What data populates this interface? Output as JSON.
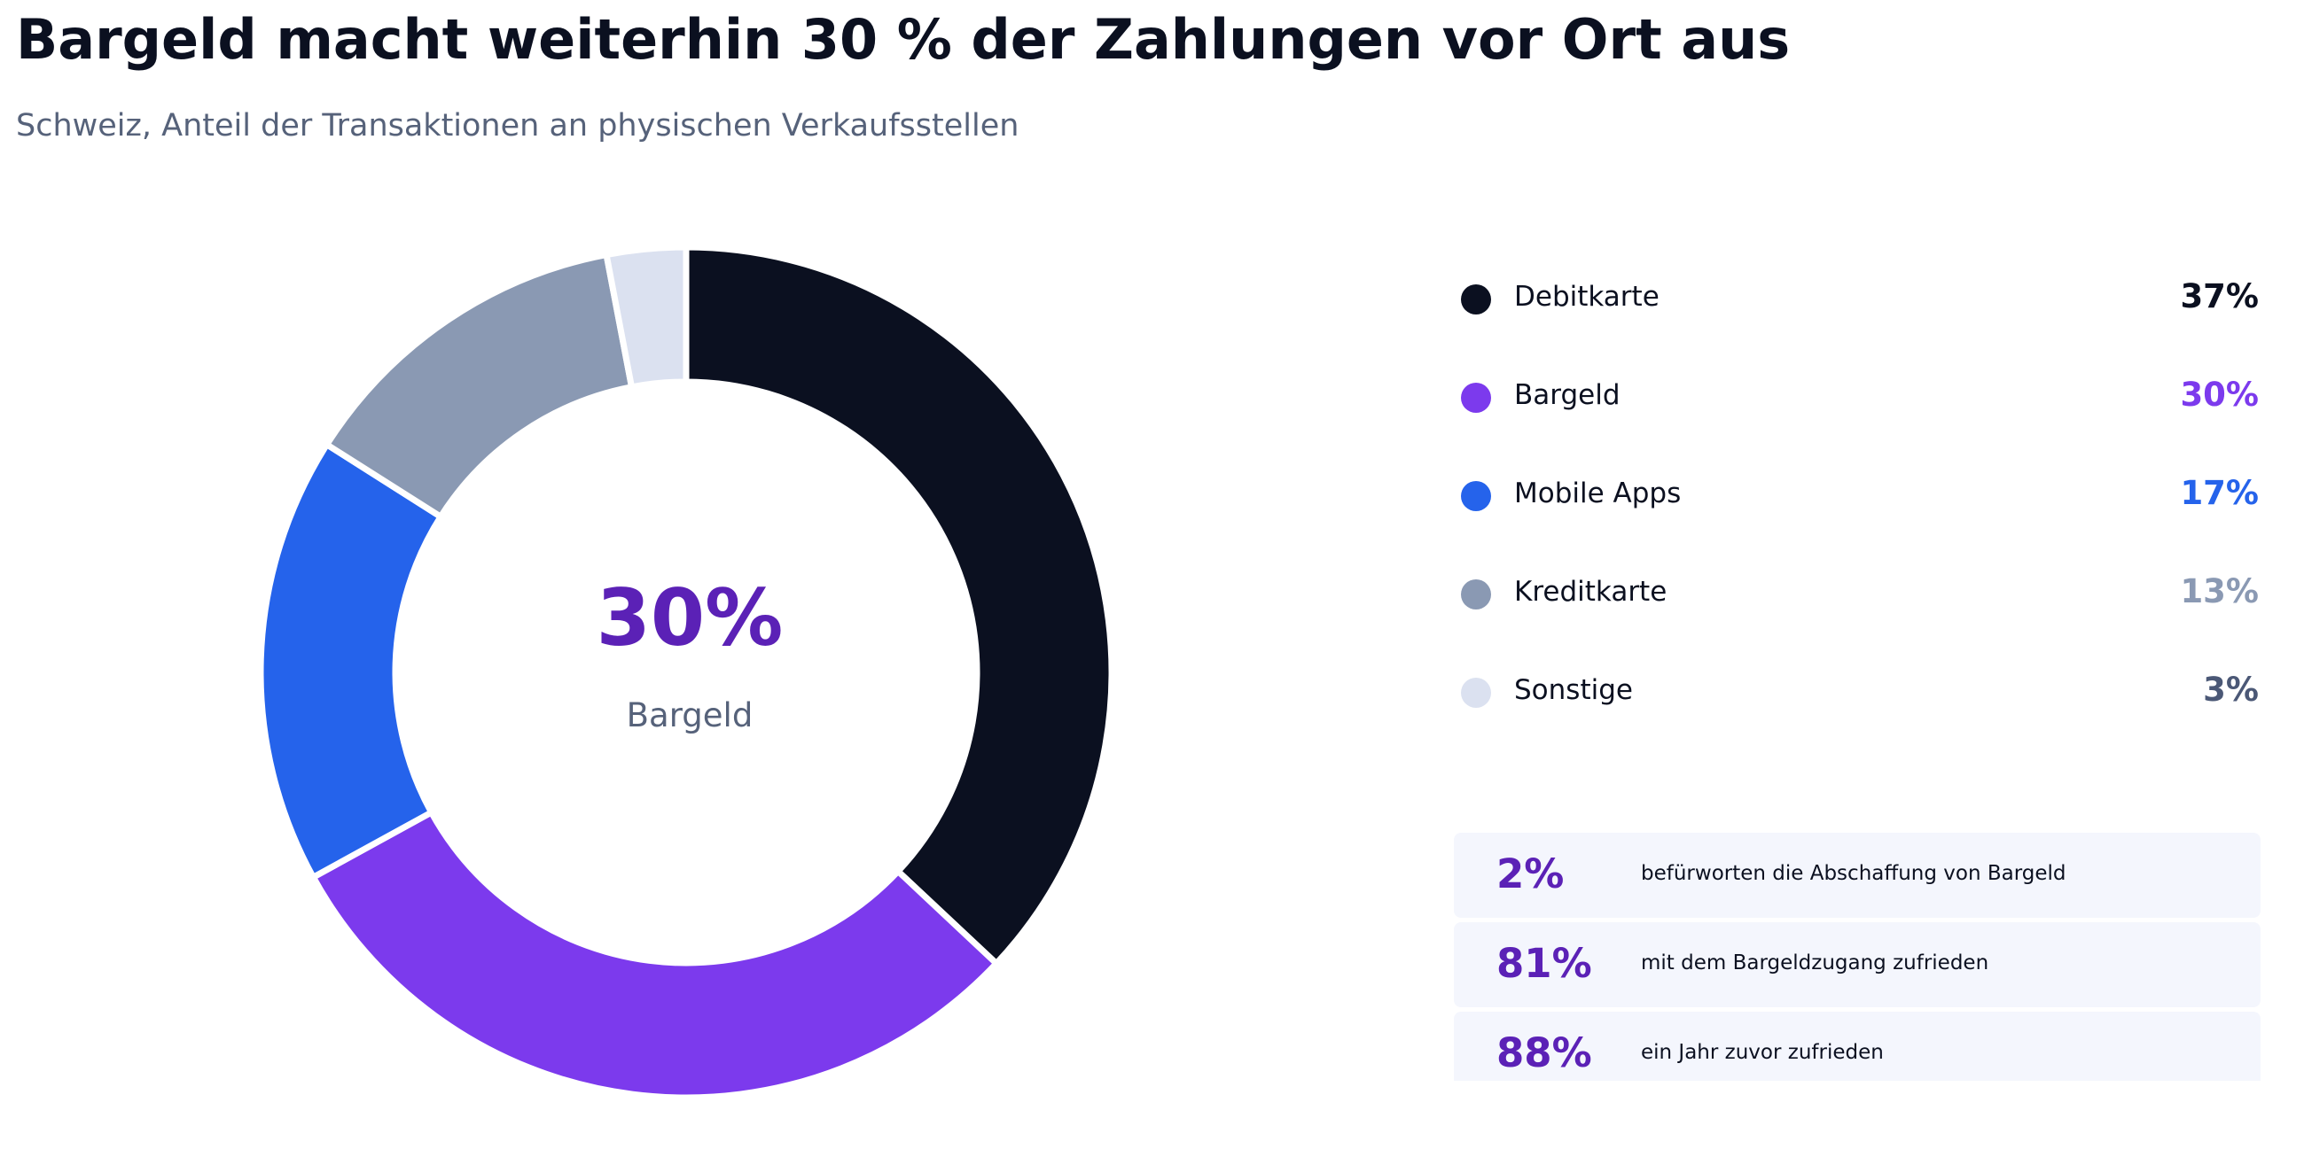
{
  "header": {
    "title": "Bargeld macht weiterhin 30 % der Zahlungen vor Ort aus",
    "subtitle": "Schweiz, Anteil der Transaktionen an physischen Verkaufsstellen"
  },
  "chart_data": {
    "type": "pie",
    "variant": "donut",
    "center_value": "30%",
    "center_label": "Bargeld",
    "slices": [
      {
        "label": "Debitkarte",
        "value": 37,
        "display": "37%",
        "color": "#0b1020",
        "value_color": "#0b1020"
      },
      {
        "label": "Bargeld",
        "value": 30,
        "display": "30%",
        "color": "#7c3aed",
        "value_color": "#7c3aed"
      },
      {
        "label": "Mobile Apps",
        "value": 17,
        "display": "17%",
        "color": "#2563eb",
        "value_color": "#2563eb"
      },
      {
        "label": "Kreditkarte",
        "value": 13,
        "display": "13%",
        "color": "#8a99b3",
        "value_color": "#8a99b3"
      },
      {
        "label": "Sonstige",
        "value": 3,
        "display": "3%",
        "color": "#dbe1f0",
        "value_color": "#4b5876"
      }
    ],
    "legend_placement": "right"
  },
  "stats": [
    {
      "value": "2%",
      "text": "befürworten die Abschaffung von Bargeld"
    },
    {
      "value": "81%",
      "text": "mit dem Bargeldzugang zufrieden"
    },
    {
      "value": "88%",
      "text": "ein Jahr zuvor zufrieden"
    }
  ],
  "colors": {
    "accent_purple": "#5b21b6",
    "card_background": "#f4f6fd"
  }
}
